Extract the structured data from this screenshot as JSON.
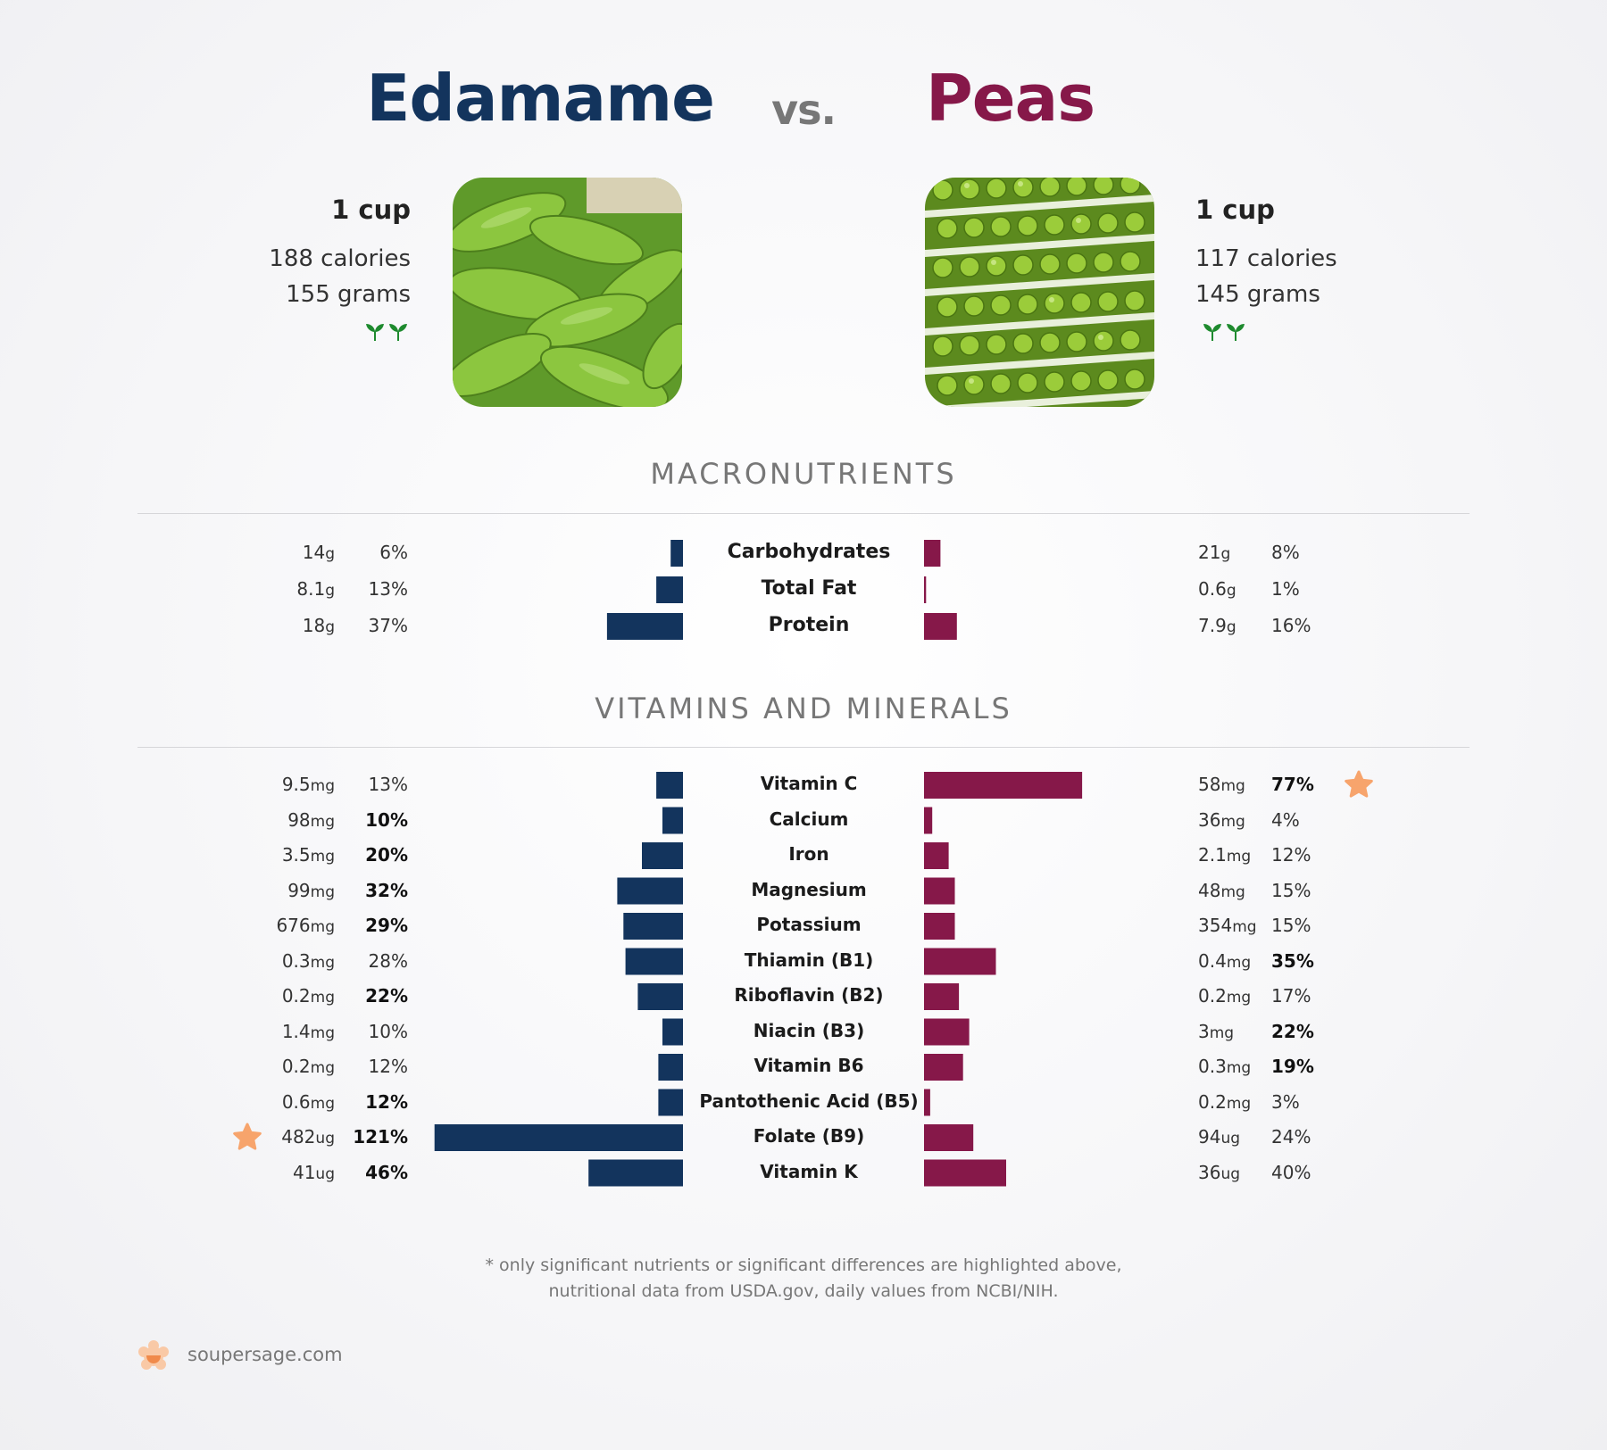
{
  "header": {
    "left_title": "Edamame",
    "vs": "vs.",
    "right_title": "Peas"
  },
  "left_food": {
    "serving": "1 cup",
    "calories": "188 calories",
    "grams": "155 grams",
    "image_icon": "edamame-photo"
  },
  "right_food": {
    "serving": "1 cup",
    "calories": "117 calories",
    "grams": "145 grams",
    "image_icon": "peas-photo"
  },
  "colors": {
    "left": "#13345d",
    "right": "#861849",
    "star": "#f7a46c",
    "leaf": "#1e8a2e"
  },
  "chart_data": [
    {
      "type": "bar",
      "title": "MACRONUTRIENTS",
      "categories": [
        "Carbohydrates",
        "Total Fat",
        "Protein"
      ],
      "series": [
        {
          "name": "Edamame",
          "amounts": [
            {
              "v": "14",
              "u": "g"
            },
            {
              "v": "8.1",
              "u": "g"
            },
            {
              "v": "18",
              "u": "g"
            }
          ],
          "percent_labels": [
            "6%",
            "13%",
            "37%"
          ],
          "values": [
            6,
            13,
            37
          ],
          "bold": [
            false,
            false,
            false
          ]
        },
        {
          "name": "Peas",
          "amounts": [
            {
              "v": "21",
              "u": "g"
            },
            {
              "v": "0.6",
              "u": "g"
            },
            {
              "v": "7.9",
              "u": "g"
            }
          ],
          "percent_labels": [
            "8%",
            "1%",
            "16%"
          ],
          "values": [
            8,
            1,
            16
          ],
          "bold": [
            false,
            false,
            false
          ]
        }
      ]
    },
    {
      "type": "bar",
      "title": "VITAMINS AND MINERALS",
      "categories": [
        "Vitamin C",
        "Calcium",
        "Iron",
        "Magnesium",
        "Potassium",
        "Thiamin (B1)",
        "Riboflavin (B2)",
        "Niacin (B3)",
        "Vitamin B6",
        "Pantothenic Acid (B5)",
        "Folate (B9)",
        "Vitamin K"
      ],
      "series": [
        {
          "name": "Edamame",
          "amounts": [
            {
              "v": "9.5",
              "u": "mg"
            },
            {
              "v": "98",
              "u": "mg"
            },
            {
              "v": "3.5",
              "u": "mg"
            },
            {
              "v": "99",
              "u": "mg"
            },
            {
              "v": "676",
              "u": "mg"
            },
            {
              "v": "0.3",
              "u": "mg"
            },
            {
              "v": "0.2",
              "u": "mg"
            },
            {
              "v": "1.4",
              "u": "mg"
            },
            {
              "v": "0.2",
              "u": "mg"
            },
            {
              "v": "0.6",
              "u": "mg"
            },
            {
              "v": "482",
              "u": "ug"
            },
            {
              "v": "41",
              "u": "ug"
            }
          ],
          "percent_labels": [
            "13%",
            "10%",
            "20%",
            "32%",
            "29%",
            "28%",
            "22%",
            "10%",
            "12%",
            "12%",
            "121%",
            "46%"
          ],
          "values": [
            13,
            10,
            20,
            32,
            29,
            28,
            22,
            10,
            12,
            12,
            121,
            46
          ],
          "bold": [
            false,
            true,
            true,
            true,
            true,
            false,
            true,
            false,
            false,
            true,
            true,
            true
          ],
          "starred": [
            false,
            false,
            false,
            false,
            false,
            false,
            false,
            false,
            false,
            false,
            true,
            false
          ]
        },
        {
          "name": "Peas",
          "amounts": [
            {
              "v": "58",
              "u": "mg"
            },
            {
              "v": "36",
              "u": "mg"
            },
            {
              "v": "2.1",
              "u": "mg"
            },
            {
              "v": "48",
              "u": "mg"
            },
            {
              "v": "354",
              "u": "mg"
            },
            {
              "v": "0.4",
              "u": "mg"
            },
            {
              "v": "0.2",
              "u": "mg"
            },
            {
              "v": "3",
              "u": "mg"
            },
            {
              "v": "0.3",
              "u": "mg"
            },
            {
              "v": "0.2",
              "u": "mg"
            },
            {
              "v": "94",
              "u": "ug"
            },
            {
              "v": "36",
              "u": "ug"
            }
          ],
          "percent_labels": [
            "77%",
            "4%",
            "12%",
            "15%",
            "15%",
            "35%",
            "17%",
            "22%",
            "19%",
            "3%",
            "24%",
            "40%"
          ],
          "values": [
            77,
            4,
            12,
            15,
            15,
            35,
            17,
            22,
            19,
            3,
            24,
            40
          ],
          "bold": [
            true,
            false,
            false,
            false,
            false,
            true,
            false,
            true,
            true,
            false,
            false,
            false
          ],
          "starred": [
            true,
            false,
            false,
            false,
            false,
            false,
            false,
            false,
            false,
            false,
            false,
            false
          ]
        }
      ]
    }
  ],
  "footnote": {
    "line1": "* only significant nutrients or significant differences are highlighted above,",
    "line2": "nutritional data from USDA.gov, daily values from NCBI/NIH."
  },
  "brand": {
    "name": "soupersage.com",
    "icon": "soupersage-logo-icon"
  }
}
